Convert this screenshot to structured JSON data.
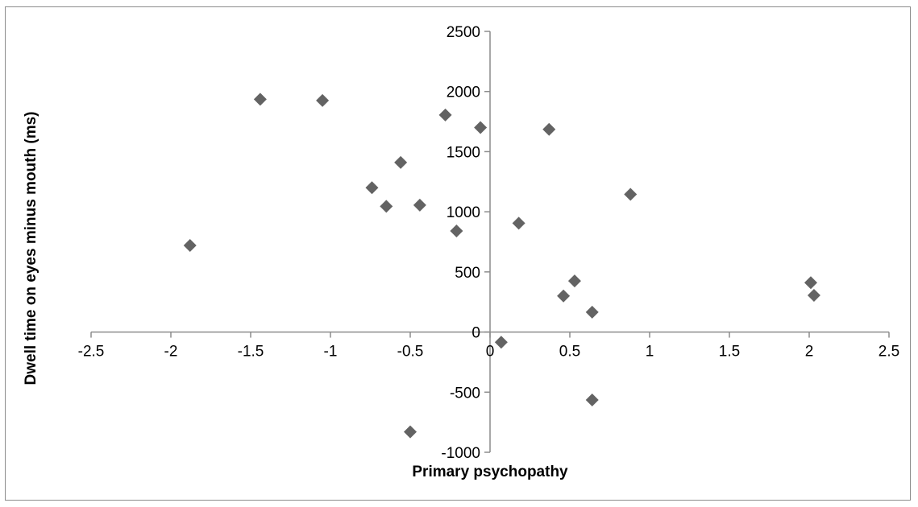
{
  "chart_data": {
    "type": "scatter",
    "title": "",
    "xlabel": "Primary psychopathy",
    "ylabel": "Dwell time on eyes minus mouth (ms)",
    "xlim": [
      -2.5,
      2.5
    ],
    "ylim": [
      -1000,
      2500
    ],
    "x_ticks": [
      -2.5,
      -2,
      -1.5,
      -1,
      -0.5,
      0,
      0.5,
      1,
      1.5,
      2,
      2.5
    ],
    "y_ticks": [
      -1000,
      -500,
      0,
      500,
      1000,
      1500,
      2000,
      2500
    ],
    "x_tick_labels": [
      "-2.5",
      "-2",
      "-1.5",
      "-1",
      "-0.5",
      "0",
      "0.5",
      "1",
      "1.5",
      "2",
      "2.5"
    ],
    "y_tick_labels": [
      "-1000",
      "-500",
      "0",
      "500",
      "1000",
      "1500",
      "2000",
      "2500"
    ],
    "grid": false,
    "legend": "none",
    "marker": "diamond",
    "marker_color": "#636363",
    "axis_color": "#8c8c8c",
    "series": [
      {
        "points": [
          {
            "x": -1.88,
            "y": 720
          },
          {
            "x": -1.44,
            "y": 1935
          },
          {
            "x": -1.05,
            "y": 1925
          },
          {
            "x": -0.74,
            "y": 1200
          },
          {
            "x": -0.65,
            "y": 1045
          },
          {
            "x": -0.56,
            "y": 1410
          },
          {
            "x": -0.5,
            "y": -830
          },
          {
            "x": -0.44,
            "y": 1055
          },
          {
            "x": -0.28,
            "y": 1805
          },
          {
            "x": -0.21,
            "y": 840
          },
          {
            "x": -0.06,
            "y": 1700
          },
          {
            "x": 0.07,
            "y": -85
          },
          {
            "x": 0.18,
            "y": 905
          },
          {
            "x": 0.37,
            "y": 1685
          },
          {
            "x": 0.46,
            "y": 300
          },
          {
            "x": 0.53,
            "y": 425
          },
          {
            "x": 0.64,
            "y": 165
          },
          {
            "x": 0.64,
            "y": -565
          },
          {
            "x": 0.88,
            "y": 1145
          },
          {
            "x": 2.01,
            "y": 410
          },
          {
            "x": 2.03,
            "y": 305
          }
        ]
      }
    ]
  }
}
